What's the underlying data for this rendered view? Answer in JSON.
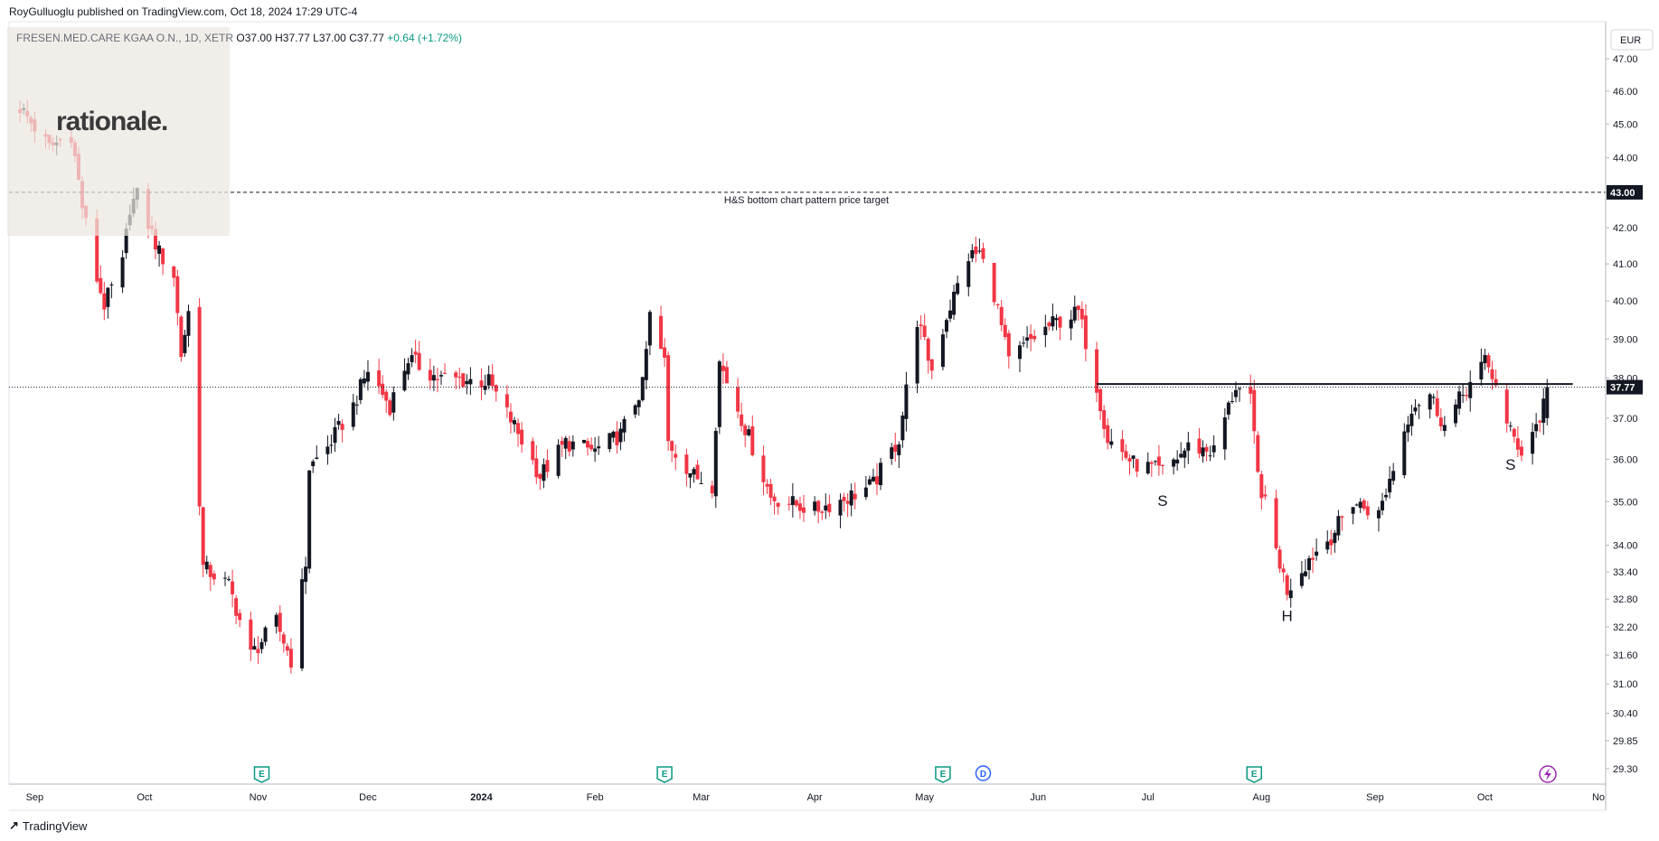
{
  "header": {
    "published": "RoyGulluoglu published on TradingView.com, Oct 18, 2024 17:29 UTC-4",
    "symbol": "FRESEN.MED.CARE KGAA O.N., 1D, XETR",
    "open": "O37.00",
    "high": "H37.77",
    "low": "L37.00",
    "close": "C37.77",
    "change": "+0.64 (+1.72%)"
  },
  "watermark": {
    "text": "rationale."
  },
  "footer": {
    "brand": "TradingView"
  },
  "colors": {
    "up": "#131722",
    "down": "#f23645",
    "grid": "#f0f3fa",
    "event": "#089981",
    "dividend": "#2962ff"
  },
  "chart_data": {
    "type": "candlestick",
    "currency": "EUR",
    "y_scale": "log",
    "ylim": [
      29.0,
      48.0
    ],
    "y_ticks": [
      "47.00",
      "46.00",
      "45.00",
      "44.00",
      "43.00",
      "42.00",
      "41.00",
      "40.00",
      "39.00",
      "38.00",
      "37.00",
      "36.00",
      "35.00",
      "34.00",
      "33.40",
      "32.80",
      "32.20",
      "31.60",
      "31.00",
      "30.40",
      "29.85",
      "29.30"
    ],
    "x_labels": [
      {
        "label": "Sep",
        "date": "2023-09-01"
      },
      {
        "label": "Oct",
        "date": "2023-10-01"
      },
      {
        "label": "Nov",
        "date": "2023-11-01"
      },
      {
        "label": "Dec",
        "date": "2023-12-01"
      },
      {
        "label": "2024",
        "date": "2024-01-01"
      },
      {
        "label": "Feb",
        "date": "2024-02-01"
      },
      {
        "label": "Mar",
        "date": "2024-03-01"
      },
      {
        "label": "Apr",
        "date": "2024-04-01"
      },
      {
        "label": "May",
        "date": "2024-05-01"
      },
      {
        "label": "Jun",
        "date": "2024-06-01"
      },
      {
        "label": "Jul",
        "date": "2024-07-01"
      },
      {
        "label": "Aug",
        "date": "2024-08-01"
      },
      {
        "label": "Sep",
        "date": "2024-09-01"
      },
      {
        "label": "Oct",
        "date": "2024-10-01"
      },
      {
        "label": "No",
        "date": "2024-11-01"
      }
    ],
    "last_price": "37.77",
    "target_price": "43.00",
    "target_label": "H&S bottom chart pattern price target",
    "neckline": {
      "price": 37.85,
      "from": "2024-06-17",
      "to": "2024-10-25"
    },
    "pattern_labels": [
      {
        "text": "S",
        "date": "2024-07-05",
        "price": 35.2
      },
      {
        "text": "H",
        "date": "2024-08-08",
        "price": 32.6
      },
      {
        "text": "S",
        "date": "2024-10-08",
        "price": 36.05
      }
    ],
    "events": [
      {
        "type": "earnings",
        "label": "E",
        "date": "2023-11-02"
      },
      {
        "type": "earnings",
        "label": "E",
        "date": "2024-02-20"
      },
      {
        "type": "earnings",
        "label": "E",
        "date": "2024-05-06"
      },
      {
        "type": "dividend",
        "label": "D",
        "date": "2024-05-17"
      },
      {
        "type": "earnings",
        "label": "E",
        "date": "2024-07-30"
      }
    ],
    "anchors": [
      {
        "date": "2023-08-28",
        "close": 45.5
      },
      {
        "date": "2023-09-05",
        "close": 44.3
      },
      {
        "date": "2023-09-11",
        "close": 44.7
      },
      {
        "date": "2023-09-14",
        "close": 42.6
      },
      {
        "date": "2023-09-18",
        "close": 40.6
      },
      {
        "date": "2023-09-20",
        "close": 39.9
      },
      {
        "date": "2023-09-25",
        "close": 41.0
      },
      {
        "date": "2023-09-27",
        "close": 42.6
      },
      {
        "date": "2023-09-29",
        "close": 42.9
      },
      {
        "date": "2023-10-05",
        "close": 41.3
      },
      {
        "date": "2023-10-09",
        "close": 40.7
      },
      {
        "date": "2023-10-11",
        "close": 38.6
      },
      {
        "date": "2023-10-13",
        "close": 39.7
      },
      {
        "date": "2023-10-17",
        "close": 33.5
      },
      {
        "date": "2023-10-24",
        "close": 33.1
      },
      {
        "date": "2023-10-30",
        "close": 31.6
      },
      {
        "date": "2023-11-06",
        "close": 32.3
      },
      {
        "date": "2023-11-10",
        "close": 31.5
      },
      {
        "date": "2023-11-14",
        "close": 33.6
      },
      {
        "date": "2023-11-15",
        "close": 35.8
      },
      {
        "date": "2023-11-20",
        "close": 36.3
      },
      {
        "date": "2023-11-27",
        "close": 37.3
      },
      {
        "date": "2023-12-01",
        "close": 38.2
      },
      {
        "date": "2023-12-07",
        "close": 37.3
      },
      {
        "date": "2023-12-12",
        "close": 38.5
      },
      {
        "date": "2023-12-20",
        "close": 38.0
      },
      {
        "date": "2024-01-03",
        "close": 37.9
      },
      {
        "date": "2024-01-10",
        "close": 36.8
      },
      {
        "date": "2024-01-17",
        "close": 35.6
      },
      {
        "date": "2024-01-24",
        "close": 36.4
      },
      {
        "date": "2024-02-01",
        "close": 36.2
      },
      {
        "date": "2024-02-08",
        "close": 36.6
      },
      {
        "date": "2024-02-14",
        "close": 37.8
      },
      {
        "date": "2024-02-16",
        "close": 39.6
      },
      {
        "date": "2024-02-20",
        "close": 38.4
      },
      {
        "date": "2024-02-21",
        "close": 36.4
      },
      {
        "date": "2024-02-28",
        "close": 35.6
      },
      {
        "date": "2024-03-04",
        "close": 35.4
      },
      {
        "date": "2024-03-06",
        "close": 38.4
      },
      {
        "date": "2024-03-12",
        "close": 37.0
      },
      {
        "date": "2024-03-20",
        "close": 35.1
      },
      {
        "date": "2024-04-01",
        "close": 34.8
      },
      {
        "date": "2024-04-10",
        "close": 35.1
      },
      {
        "date": "2024-04-17",
        "close": 35.4
      },
      {
        "date": "2024-04-24",
        "close": 36.5
      },
      {
        "date": "2024-04-26",
        "close": 37.7
      },
      {
        "date": "2024-04-29",
        "close": 39.5
      },
      {
        "date": "2024-05-03",
        "close": 38.2
      },
      {
        "date": "2024-05-07",
        "close": 39.6
      },
      {
        "date": "2024-05-13",
        "close": 41.2
      },
      {
        "date": "2024-05-16",
        "close": 41.3
      },
      {
        "date": "2024-05-20",
        "close": 40.2
      },
      {
        "date": "2024-05-24",
        "close": 38.4
      },
      {
        "date": "2024-05-29",
        "close": 38.9
      },
      {
        "date": "2024-06-05",
        "close": 39.4
      },
      {
        "date": "2024-06-12",
        "close": 39.7
      },
      {
        "date": "2024-06-17",
        "close": 37.8
      },
      {
        "date": "2024-06-20",
        "close": 36.5
      },
      {
        "date": "2024-06-27",
        "close": 35.9
      },
      {
        "date": "2024-07-05",
        "close": 35.7
      },
      {
        "date": "2024-07-12",
        "close": 36.3
      },
      {
        "date": "2024-07-19",
        "close": 36.2
      },
      {
        "date": "2024-07-25",
        "close": 37.8
      },
      {
        "date": "2024-07-29",
        "close": 37.4
      },
      {
        "date": "2024-07-31",
        "close": 35.6
      },
      {
        "date": "2024-08-05",
        "close": 33.9
      },
      {
        "date": "2024-08-08",
        "close": 33.0
      },
      {
        "date": "2024-08-14",
        "close": 33.7
      },
      {
        "date": "2024-08-20",
        "close": 34.2
      },
      {
        "date": "2024-08-26",
        "close": 35.0
      },
      {
        "date": "2024-09-02",
        "close": 34.7
      },
      {
        "date": "2024-09-06",
        "close": 35.8
      },
      {
        "date": "2024-09-11",
        "close": 37.3
      },
      {
        "date": "2024-09-16",
        "close": 37.6
      },
      {
        "date": "2024-09-20",
        "close": 36.8
      },
      {
        "date": "2024-09-25",
        "close": 37.6
      },
      {
        "date": "2024-10-01",
        "close": 38.4
      },
      {
        "date": "2024-10-04",
        "close": 37.9
      },
      {
        "date": "2024-10-07",
        "close": 36.8
      },
      {
        "date": "2024-10-11",
        "close": 36.2
      },
      {
        "date": "2024-10-16",
        "close": 37.0
      },
      {
        "date": "2024-10-18",
        "close": 37.77
      }
    ]
  }
}
